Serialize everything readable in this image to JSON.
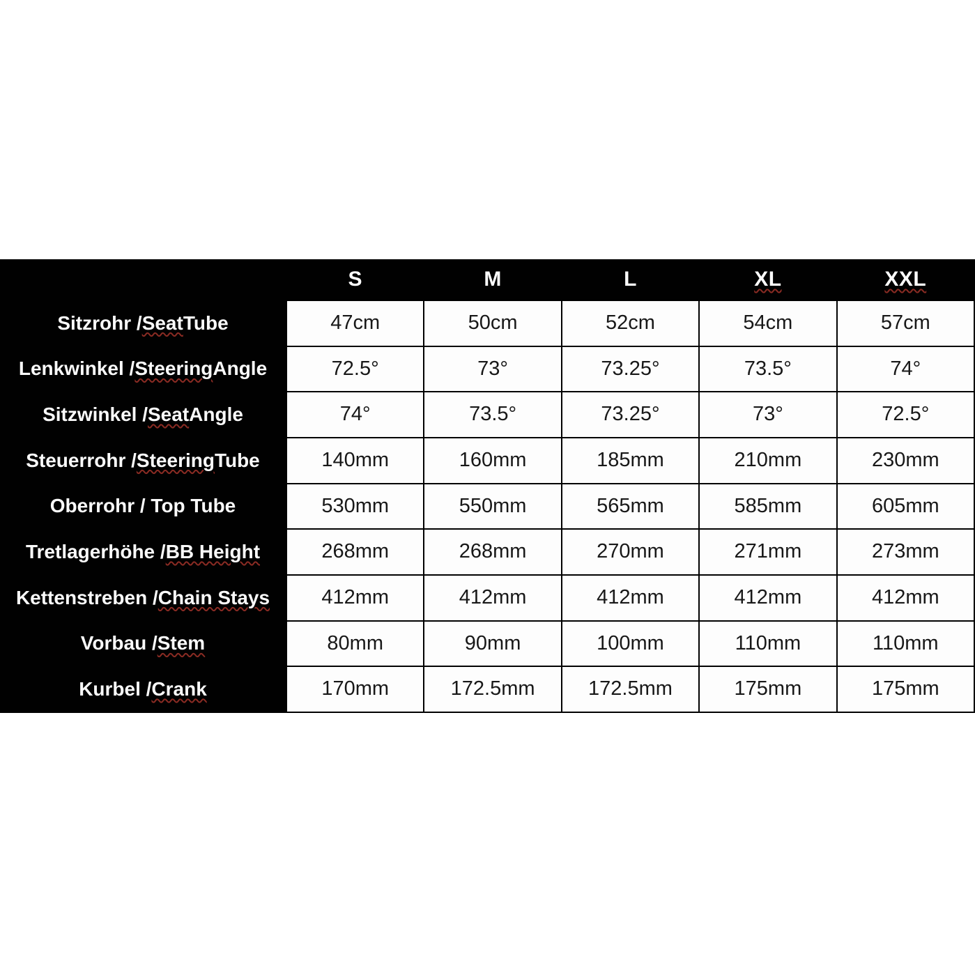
{
  "page": {
    "background": "#ffffff"
  },
  "colors": {
    "band_bg": "#010101",
    "cell_bg": "#fdfdfd",
    "grid_line": "#010101",
    "label_text": "#fafafa",
    "value_text": "#181818",
    "spellcheck_underline": "#8a2b23"
  },
  "table": {
    "columns": [
      {
        "label": "S",
        "squiggle": null
      },
      {
        "label": "M",
        "squiggle": null
      },
      {
        "label": "L",
        "squiggle": null
      },
      {
        "label": "XL",
        "squiggle": "XL"
      },
      {
        "label": "XXL",
        "squiggle": "XXL"
      }
    ],
    "rows": [
      {
        "label": "Sitzrohr / Seat Tube",
        "squiggle": "Seat",
        "values": [
          "47cm",
          "50cm",
          "52cm",
          "54cm",
          "57cm"
        ]
      },
      {
        "label": "Lenkwinkel / Steering Angle",
        "squiggle": "Steering",
        "values": [
          "72.5°",
          "73°",
          "73.25°",
          "73.5°",
          "74°"
        ]
      },
      {
        "label": "Sitzwinkel / Seat Angle",
        "squiggle": "Seat",
        "values": [
          "74°",
          "73.5°",
          "73.25°",
          "73°",
          "72.5°"
        ]
      },
      {
        "label": "Steuerrohr / Steering Tube",
        "squiggle": "Steering",
        "values": [
          "140mm",
          "160mm",
          "185mm",
          "210mm",
          "230mm"
        ]
      },
      {
        "label": "Oberrohr / Top Tube",
        "squiggle": null,
        "values": [
          "530mm",
          "550mm",
          "565mm",
          "585mm",
          "605mm"
        ]
      },
      {
        "label": "Tretlagerhöhe / BB Height",
        "squiggle": "BB Height",
        "values": [
          "268mm",
          "268mm",
          "270mm",
          "271mm",
          "273mm"
        ]
      },
      {
        "label": "Kettenstreben / Chain Stays",
        "squiggle": "Chain Stays",
        "values": [
          "412mm",
          "412mm",
          "412mm",
          "412mm",
          "412mm"
        ]
      },
      {
        "label": "Vorbau / Stem",
        "squiggle": "Stem",
        "values": [
          "80mm",
          "90mm",
          "100mm",
          "110mm",
          "110mm"
        ]
      },
      {
        "label": "Kurbel / Crank",
        "squiggle": "Crank",
        "values": [
          "170mm",
          "172.5mm",
          "172.5mm",
          "175mm",
          "175mm"
        ]
      }
    ]
  },
  "chart_data": {
    "type": "table",
    "title": "",
    "columns": [
      "S",
      "M",
      "L",
      "XL",
      "XXL"
    ],
    "rows": [
      {
        "label": "Sitzrohr / Seat Tube",
        "values": [
          "47cm",
          "50cm",
          "52cm",
          "54cm",
          "57cm"
        ]
      },
      {
        "label": "Lenkwinkel / Steering Angle",
        "values": [
          "72.5°",
          "73°",
          "73.25°",
          "73.5°",
          "74°"
        ]
      },
      {
        "label": "Sitzwinkel / Seat Angle",
        "values": [
          "74°",
          "73.5°",
          "73.25°",
          "73°",
          "72.5°"
        ]
      },
      {
        "label": "Steuerrohr / Steering Tube",
        "values": [
          "140mm",
          "160mm",
          "185mm",
          "210mm",
          "230mm"
        ]
      },
      {
        "label": "Oberrohr / Top Tube",
        "values": [
          "530mm",
          "550mm",
          "565mm",
          "585mm",
          "605mm"
        ]
      },
      {
        "label": "Tretlagerhöhe / BB Height",
        "values": [
          "268mm",
          "268mm",
          "270mm",
          "271mm",
          "273mm"
        ]
      },
      {
        "label": "Kettenstreben / Chain Stays",
        "values": [
          "412mm",
          "412mm",
          "412mm",
          "412mm",
          "412mm"
        ]
      },
      {
        "label": "Vorbau / Stem",
        "values": [
          "80mm",
          "90mm",
          "100mm",
          "110mm",
          "110mm"
        ]
      },
      {
        "label": "Kurbel / Crank",
        "values": [
          "170mm",
          "172.5mm",
          "172.5mm",
          "175mm",
          "175mm"
        ]
      }
    ]
  }
}
